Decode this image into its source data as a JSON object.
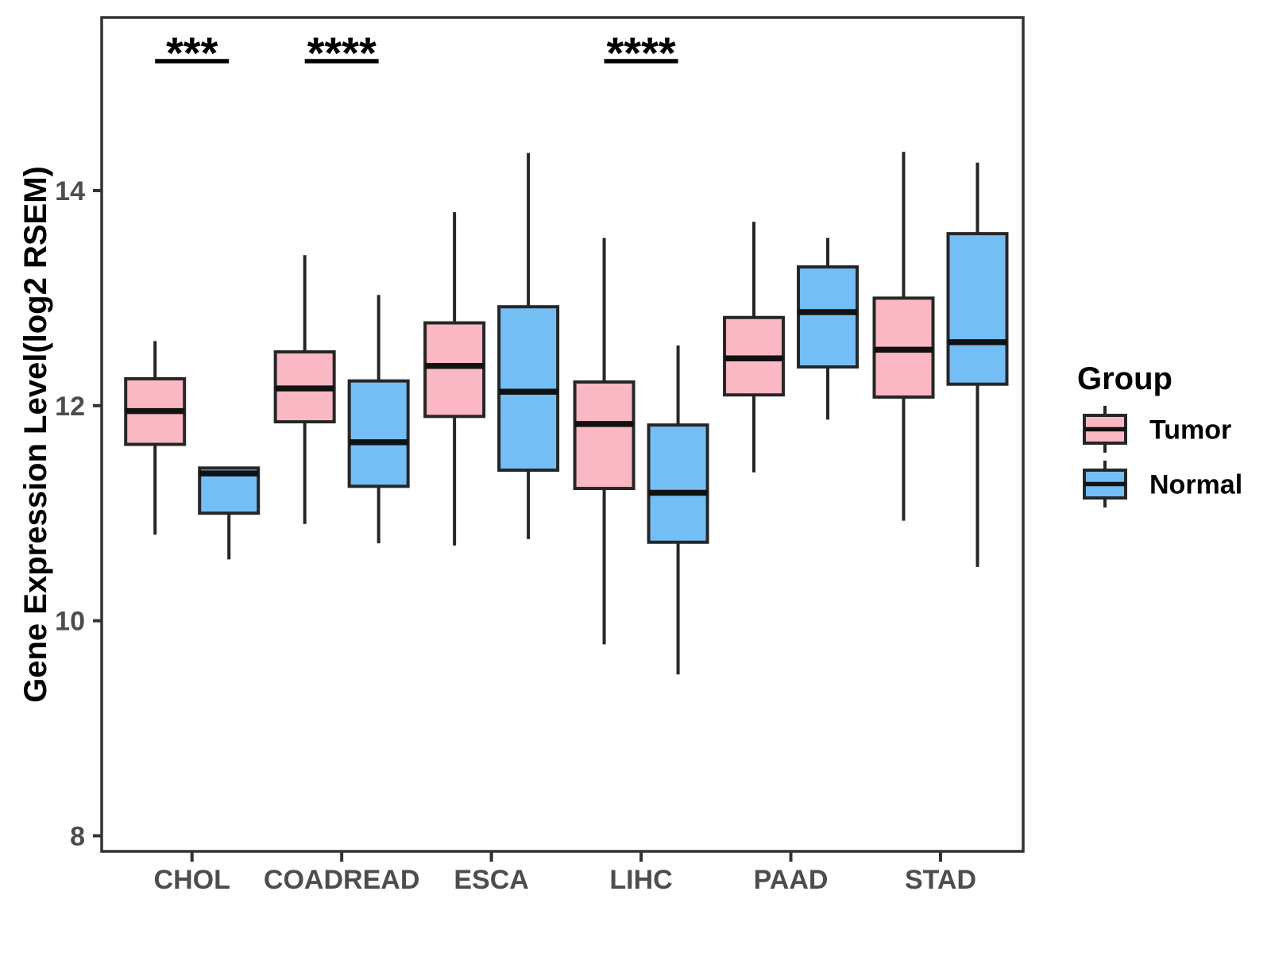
{
  "colors": {
    "tumor_fill": "#FAB8C4",
    "normal_fill": "#74BEF6",
    "box_border": "#262626",
    "median_line": "#111111",
    "axis_text": "#4d4d4d",
    "axis_line": "#333333",
    "title_text": "#000000",
    "background": "#ffffff"
  },
  "chart_data": {
    "type": "boxplot",
    "title": "",
    "xlabel": "",
    "ylabel": "Gene Expression Level(log2 RSEM)",
    "categories": [
      "CHOL",
      "COADREAD",
      "ESCA",
      "LIHC",
      "PAAD",
      "STAD"
    ],
    "y_ticks": [
      8,
      10,
      12,
      14
    ],
    "ylim": [
      7.85,
      15.6
    ],
    "grid": false,
    "legend": {
      "title": "Group",
      "position": "right",
      "entries": [
        {
          "label": "Tumor",
          "color": "#FAB8C4"
        },
        {
          "label": "Normal",
          "color": "#74BEF6"
        }
      ]
    },
    "series": [
      {
        "name": "Tumor",
        "color": "#FAB8C4",
        "boxes": [
          {
            "category": "CHOL",
            "min": 10.8,
            "q1": 11.64,
            "median": 11.95,
            "q3": 12.25,
            "max": 12.6
          },
          {
            "category": "COADREAD",
            "min": 10.9,
            "q1": 11.85,
            "median": 12.16,
            "q3": 12.5,
            "max": 13.4
          },
          {
            "category": "ESCA",
            "min": 10.7,
            "q1": 11.9,
            "median": 12.37,
            "q3": 12.77,
            "max": 13.8
          },
          {
            "category": "LIHC",
            "min": 9.78,
            "q1": 11.23,
            "median": 11.83,
            "q3": 12.22,
            "max": 13.56
          },
          {
            "category": "PAAD",
            "min": 11.38,
            "q1": 12.1,
            "median": 12.44,
            "q3": 12.82,
            "max": 13.71
          },
          {
            "category": "STAD",
            "min": 10.93,
            "q1": 12.08,
            "median": 12.52,
            "q3": 13.0,
            "max": 14.36
          }
        ]
      },
      {
        "name": "Normal",
        "color": "#74BEF6",
        "boxes": [
          {
            "category": "CHOL",
            "min": 10.57,
            "q1": 11.0,
            "median": 11.37,
            "q3": 11.42,
            "max": 11.42
          },
          {
            "category": "COADREAD",
            "min": 10.72,
            "q1": 11.25,
            "median": 11.66,
            "q3": 12.23,
            "max": 13.03
          },
          {
            "category": "ESCA",
            "min": 10.76,
            "q1": 11.4,
            "median": 12.13,
            "q3": 12.92,
            "max": 14.35
          },
          {
            "category": "LIHC",
            "min": 9.5,
            "q1": 10.73,
            "median": 11.19,
            "q3": 11.82,
            "max": 12.56
          },
          {
            "category": "PAAD",
            "min": 11.87,
            "q1": 12.36,
            "median": 12.87,
            "q3": 13.29,
            "max": 13.56
          },
          {
            "category": "STAD",
            "min": 10.5,
            "q1": 12.2,
            "median": 12.59,
            "q3": 13.6,
            "max": 14.26
          }
        ]
      }
    ],
    "significance": [
      {
        "category": "CHOL",
        "label": "***"
      },
      {
        "category": "COADREAD",
        "label": "****"
      },
      {
        "category": "LIHC",
        "label": "****"
      }
    ]
  }
}
